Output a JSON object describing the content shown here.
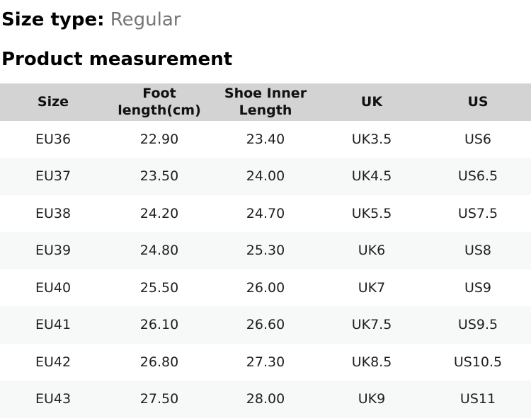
{
  "size_type": {
    "label": "Size type:",
    "value": "Regular"
  },
  "section_title": "Product measurement",
  "measurement_table": {
    "columns": [
      "Size",
      "Foot length(cm)",
      "Shoe Inner Length",
      "UK",
      "US"
    ],
    "rows": [
      [
        "EU36",
        "22.90",
        "23.40",
        "UK3.5",
        "US6"
      ],
      [
        "EU37",
        "23.50",
        "24.00",
        "UK4.5",
        "US6.5"
      ],
      [
        "EU38",
        "24.20",
        "24.70",
        "UK5.5",
        "US7.5"
      ],
      [
        "EU39",
        "24.80",
        "25.30",
        "UK6",
        "US8"
      ],
      [
        "EU40",
        "25.50",
        "26.00",
        "UK7",
        "US9"
      ],
      [
        "EU41",
        "26.10",
        "26.60",
        "UK7.5",
        "US9.5"
      ],
      [
        "EU42",
        "26.80",
        "27.30",
        "UK8.5",
        "US10.5"
      ],
      [
        "EU43",
        "27.50",
        "28.00",
        "UK9",
        "US11"
      ]
    ]
  },
  "colors": {
    "header_bg": "#d3d3d3",
    "stripe_bg": "#f7f8f8",
    "muted_text": "#757575",
    "heading_text": "#000000",
    "cell_text": "#1f1f1f"
  }
}
